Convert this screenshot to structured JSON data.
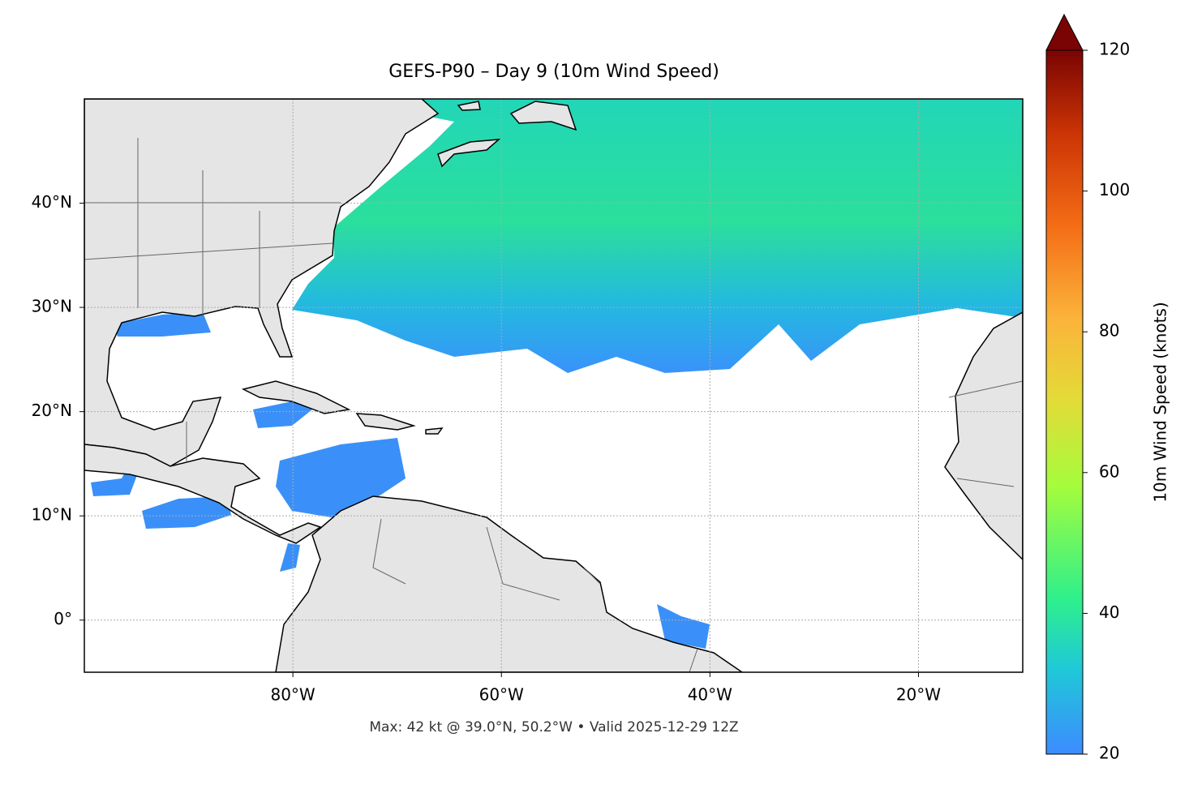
{
  "chart_data": {
    "type": "map",
    "title": "GEFS-P90 – Day 9 (10m Wind Speed)",
    "annotation": "Max: 42 kt @ 39.0°N, 50.2°W • Valid 2025-12-29 12Z",
    "xlim": [
      -100,
      -10
    ],
    "ylim": [
      -5,
      50
    ],
    "xticks": [
      {
        "value": -80,
        "label": "80°W"
      },
      {
        "value": -60,
        "label": "60°W"
      },
      {
        "value": -40,
        "label": "40°W"
      },
      {
        "value": -20,
        "label": "20°W"
      }
    ],
    "yticks": [
      {
        "value": 0,
        "label": "0°"
      },
      {
        "value": 10,
        "label": "10°N"
      },
      {
        "value": 20,
        "label": "20°N"
      },
      {
        "value": 30,
        "label": "30°N"
      },
      {
        "value": 40,
        "label": "40°N"
      }
    ],
    "grid": true,
    "colorbar": {
      "label": "10m Wind Speed (knots)",
      "lim": [
        20,
        120
      ],
      "ticks": [
        20,
        40,
        60,
        80,
        100,
        120
      ]
    }
  }
}
